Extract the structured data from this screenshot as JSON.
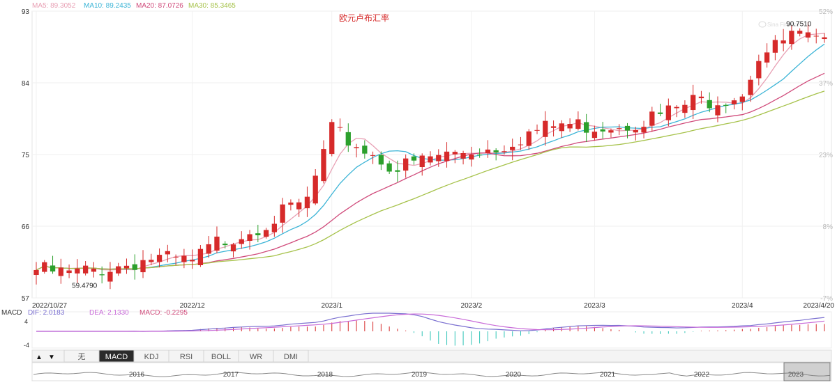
{
  "chart_data": {
    "type": "candlestick",
    "title": "欧元卢布汇率",
    "indicators": [
      {
        "label": "MA5: 89.3052",
        "color": "#e8a0b4"
      },
      {
        "label": "MA10: 89.2435",
        "color": "#3bb4d6"
      },
      {
        "label": "MA20: 87.0726",
        "color": "#d04b7b"
      },
      {
        "label": "MA30: 85.3465",
        "color": "#a6c24a"
      }
    ],
    "ylim": [
      57,
      93
    ],
    "y_ticks": [
      57,
      66,
      75,
      84,
      93
    ],
    "right_ticks": [
      "52%",
      "37%",
      "23%",
      "8%",
      "-7%"
    ],
    "x_ticks": [
      "2022/10/27",
      "2022/12",
      "2023/1",
      "2023/2",
      "2023/3",
      "2023/4",
      "2023/4/20"
    ],
    "x_tick_pos": [
      0,
      19,
      36,
      53,
      68,
      86,
      96
    ],
    "n": 97,
    "up_color": "#d62a2a",
    "down_color": "#2ca02c",
    "anchors": [
      [
        0,
        61.1
      ],
      [
        4,
        60.6
      ],
      [
        6,
        60.9
      ],
      [
        10,
        61.6
      ],
      [
        14,
        62.6
      ],
      [
        19,
        62.0
      ],
      [
        22,
        64.5
      ],
      [
        26,
        66.2
      ],
      [
        29,
        67.6
      ],
      [
        33,
        69.8
      ],
      [
        36,
        78.5
      ],
      [
        39,
        76.8
      ],
      [
        44,
        73.8
      ],
      [
        48,
        75.2
      ],
      [
        52,
        76.0
      ],
      [
        56,
        76.5
      ],
      [
        60,
        78.3
      ],
      [
        64,
        79.4
      ],
      [
        68,
        79.2
      ],
      [
        72,
        79.6
      ],
      [
        76,
        80.5
      ],
      [
        80,
        82.2
      ],
      [
        84,
        82.8
      ],
      [
        86,
        83.5
      ],
      [
        88,
        88.0
      ],
      [
        90,
        89.0
      ],
      [
        92,
        90.5
      ],
      [
        94,
        90.0
      ],
      [
        96,
        89.2
      ]
    ],
    "annotations": [
      {
        "label": "59.4790",
        "value": 59.479,
        "index": 4
      },
      {
        "label": "90.7510",
        "value": 90.751,
        "index": 91
      }
    ]
  },
  "macd": {
    "label": "MACD",
    "dif": "DIF: 2.0183",
    "dea": "DEA: 2.1330",
    "value": "MACD: -0.2295",
    "dif_color": "#7a6fd0",
    "dea_color": "#c86ad8",
    "value_color": "#d04b7b",
    "y_ticks": [
      "4",
      "-4"
    ]
  },
  "tabs": [
    "无",
    "MACD",
    "KDJ",
    "RSI",
    "BOLL",
    "WR",
    "DMI"
  ],
  "active_tab": "MACD",
  "arrows": [
    "▲",
    "▼"
  ],
  "overview_years": [
    "2016",
    "2017",
    "2018",
    "2019",
    "2020",
    "2021",
    "2022",
    "2023"
  ],
  "watermark": "Sina Finance"
}
